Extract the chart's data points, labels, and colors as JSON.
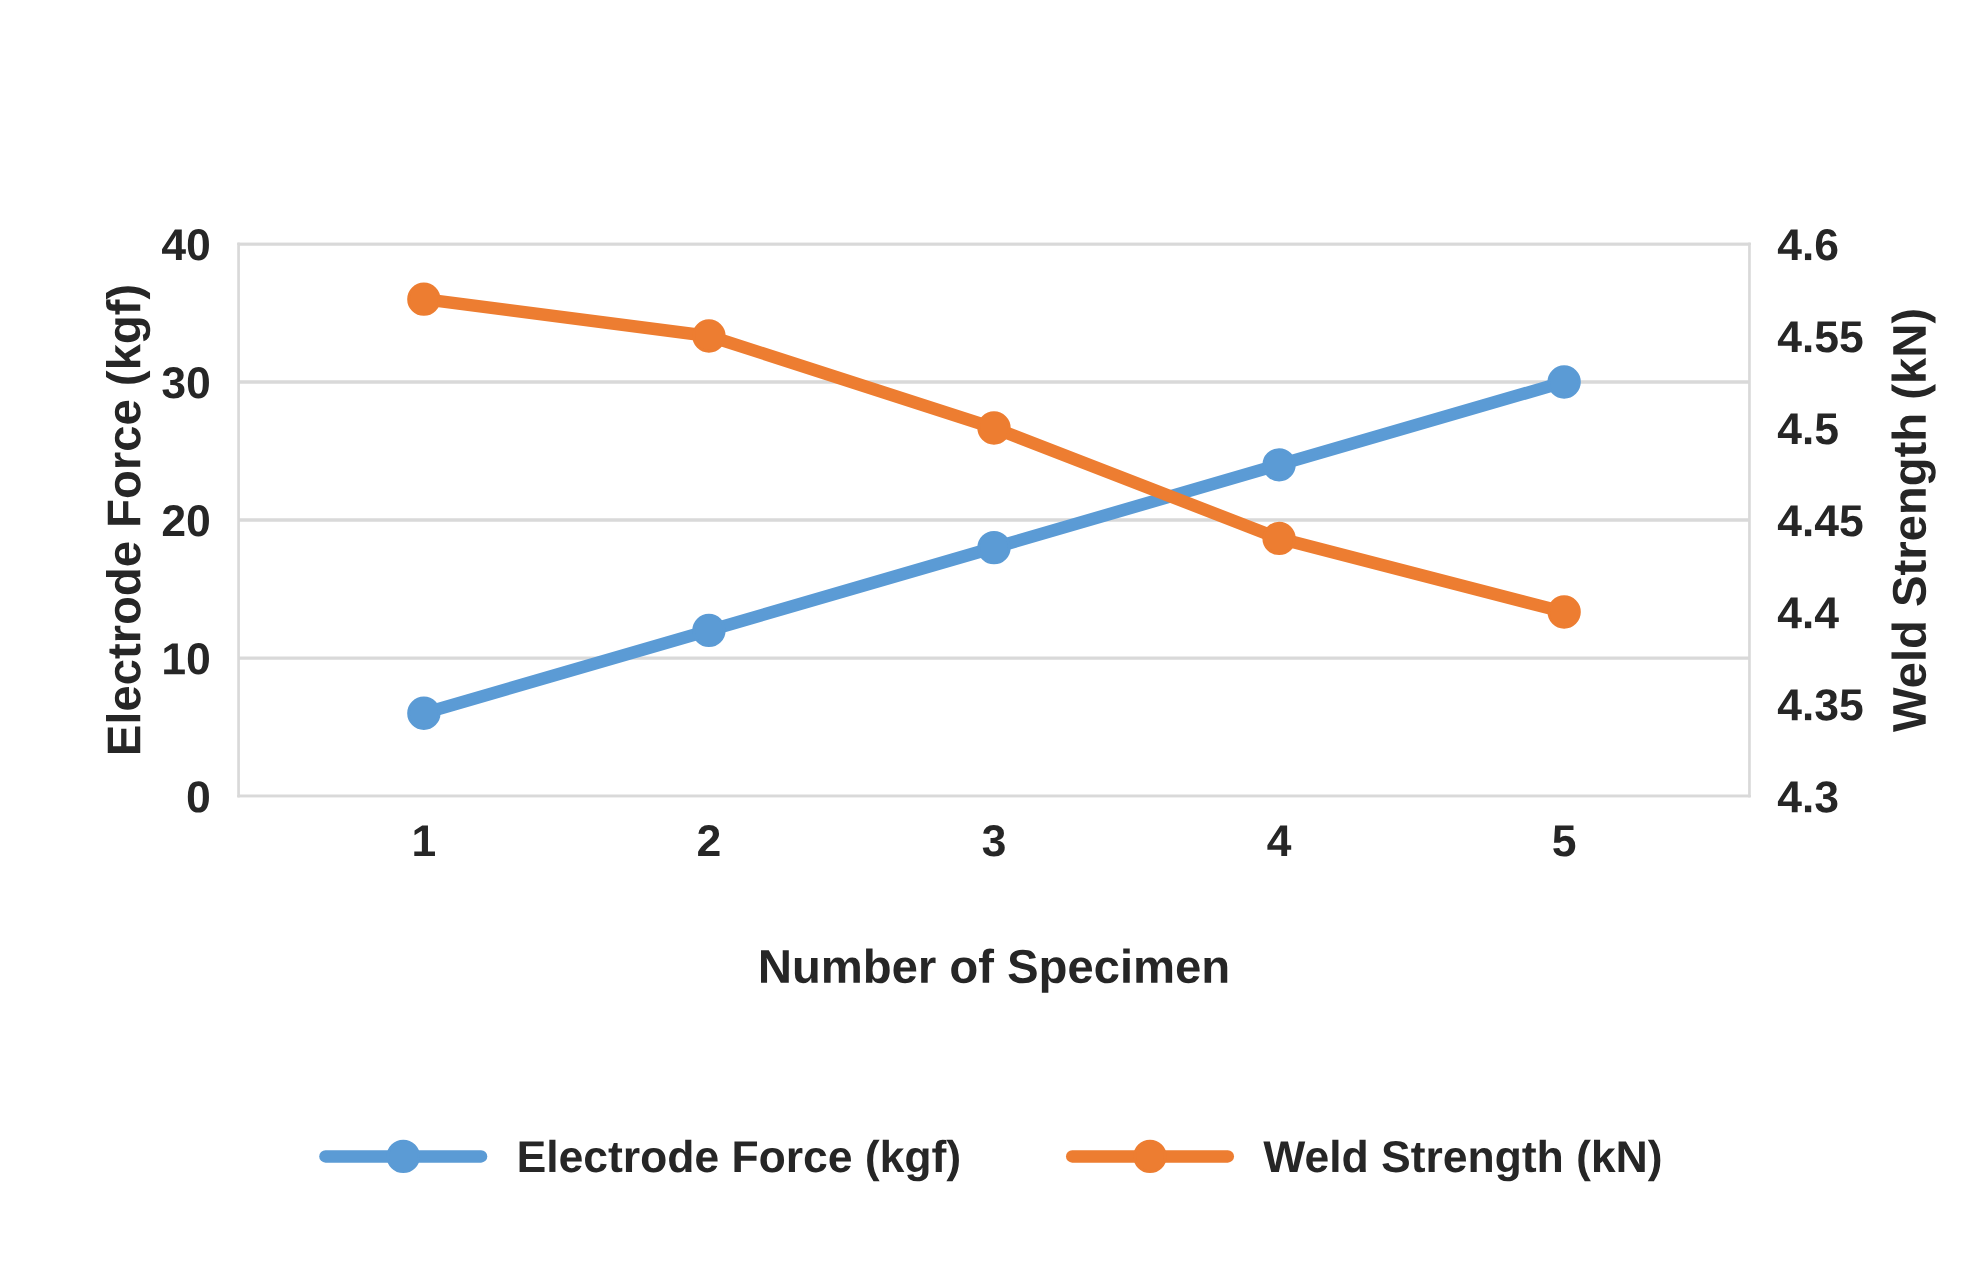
{
  "chart_data": {
    "type": "line",
    "xlabel": "Number of Specimen",
    "ylabel": "Electrode Force (kgf)",
    "y2label": "Weld Strength (kN)",
    "categories": [
      "1",
      "2",
      "3",
      "4",
      "5"
    ],
    "series": [
      {
        "name": "Electrode Force (kgf)",
        "color": "#5b9bd5",
        "values": [
          6,
          12,
          18,
          24,
          30
        ]
      },
      {
        "name": "Weld Strength (kN)",
        "color": "#ed7d31",
        "values": [
          4.57,
          4.55,
          4.5,
          4.44,
          4.4
        ],
        "axis": "y2"
      }
    ],
    "ylim": [
      0,
      40
    ],
    "yticks": [
      0,
      10,
      20,
      30,
      40
    ],
    "y2lim": [
      4.3,
      4.6
    ],
    "y2ticks": [
      4.3,
      4.35,
      4.4,
      4.45,
      4.5,
      4.55,
      4.6
    ],
    "grid": "y",
    "legend": "bottom",
    "marker": "circle",
    "line_style": "solid"
  }
}
